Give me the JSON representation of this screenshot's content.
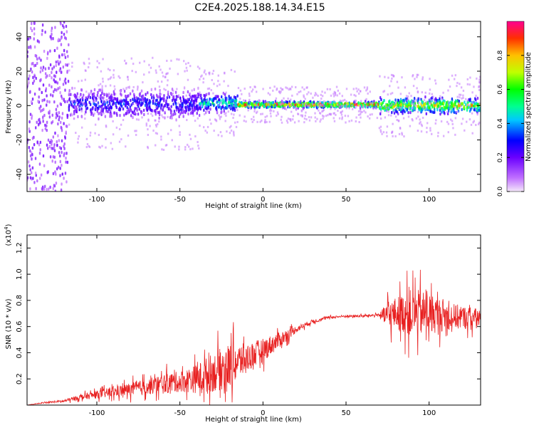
{
  "title": "C2E4.2025.188.14.34.E15",
  "chart_data": [
    {
      "type": "heatmap",
      "xlabel": "Height of straight line (km)",
      "ylabel": "Frequency (Hz)",
      "xlim": [
        -142,
        131
      ],
      "ylim": [
        -50,
        49
      ],
      "xticks": [
        -100,
        -50,
        0,
        50,
        100
      ],
      "yticks": [
        -40,
        -20,
        0,
        20,
        40
      ],
      "colorbar": {
        "label": "Normalized spectral amplitude",
        "range": [
          0,
          1
        ],
        "ticks": [
          0.0,
          0.2,
          0.4,
          0.6,
          0.8
        ],
        "tick_labels": [
          "0.0",
          "0.2",
          "0.4",
          "0.6",
          "0.8"
        ]
      },
      "features": [
        {
          "x_range": [
            -142,
            -117
          ],
          "frequency_band": [
            -50,
            49
          ],
          "amplitude": 0.15
        },
        {
          "x_range": [
            -117,
            -38
          ],
          "frequency_band": [
            -6,
            8
          ],
          "amplitude": 0.35
        },
        {
          "x_range": [
            -38,
            -15
          ],
          "frequency_band": [
            -3,
            6
          ],
          "amplitude": 0.55
        },
        {
          "x_range": [
            -15,
            70
          ],
          "frequency_band": [
            -1,
            2
          ],
          "amplitude": 0.95
        },
        {
          "x_range": [
            70,
            131
          ],
          "frequency_band": [
            -4,
            4
          ],
          "amplitude": 0.8
        }
      ]
    },
    {
      "type": "line",
      "xlabel": "Height of straight line (km)",
      "ylabel": "SNR (10 * v/v)",
      "y_multiplier_label": "(x10",
      "y_multiplier_exp": "4",
      "y_multiplier_close": ")",
      "xlim": [
        -142,
        131
      ],
      "ylim": [
        0,
        1.3
      ],
      "xticks": [
        -100,
        -50,
        0,
        50,
        100
      ],
      "yticks": [
        0.2,
        0.4,
        0.6,
        0.8,
        1.0,
        1.2
      ],
      "ytick_labels": [
        "0.2",
        "0.4",
        "0.6",
        "0.8",
        "1.0",
        "1.2"
      ],
      "color": "#e82020",
      "series": [
        {
          "x": [
            -142,
            -130,
            -120,
            -110,
            -100,
            -90,
            -80,
            -70,
            -60,
            -50,
            -40,
            -30,
            -20,
            -10,
            0,
            10,
            20,
            30,
            40,
            50,
            60,
            70,
            75,
            80,
            90,
            100,
            110,
            120,
            131
          ],
          "y": [
            0.0,
            0.02,
            0.03,
            0.06,
            0.08,
            0.1,
            0.12,
            0.14,
            0.16,
            0.18,
            0.2,
            0.25,
            0.3,
            0.36,
            0.42,
            0.5,
            0.58,
            0.64,
            0.67,
            0.68,
            0.68,
            0.69,
            0.68,
            0.7,
            0.7,
            0.7,
            0.68,
            0.67,
            0.66
          ],
          "amplitude": [
            0.0,
            0.01,
            0.02,
            0.04,
            0.06,
            0.08,
            0.1,
            0.12,
            0.15,
            0.16,
            0.22,
            0.3,
            0.35,
            0.22,
            0.18,
            0.12,
            0.05,
            0.03,
            0.02,
            0.02,
            0.02,
            0.02,
            0.22,
            0.25,
            0.38,
            0.32,
            0.22,
            0.18,
            0.15
          ]
        }
      ]
    }
  ]
}
